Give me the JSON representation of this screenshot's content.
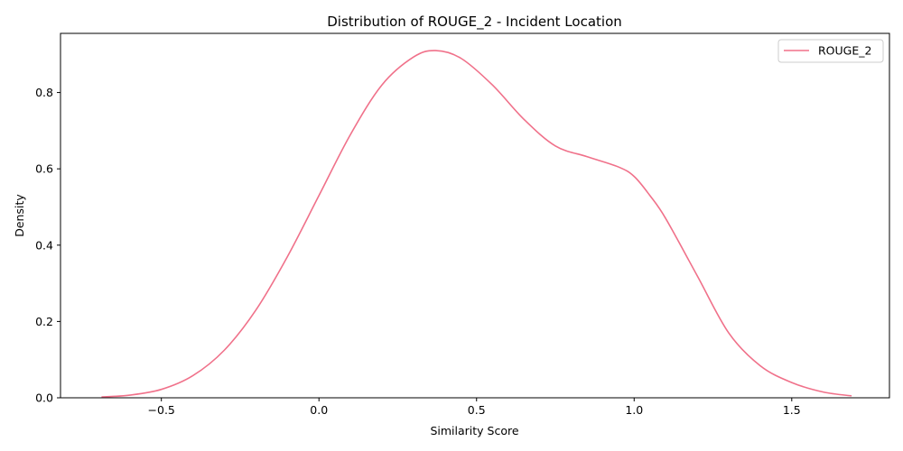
{
  "chart_data": {
    "type": "line",
    "title": "Distribution of ROUGE_2 - Incident Location",
    "xlabel": "Similarity Score",
    "ylabel": "Density",
    "xlim": [
      -0.82,
      1.81
    ],
    "ylim": [
      0,
      0.955
    ],
    "xticks": [
      -0.5,
      0.0,
      0.5,
      1.0,
      1.5
    ],
    "xtick_labels": [
      "−0.5",
      "0.0",
      "0.5",
      "1.0",
      "1.5"
    ],
    "yticks": [
      0.0,
      0.2,
      0.4,
      0.6,
      0.8
    ],
    "ytick_labels": [
      "0.0",
      "0.2",
      "0.4",
      "0.6",
      "0.8"
    ],
    "grid": false,
    "legend_position": "top-right",
    "series": [
      {
        "name": "ROUGE_2",
        "color": "#f0718a",
        "x": [
          -0.69,
          -0.6,
          -0.5,
          -0.4,
          -0.3,
          -0.2,
          -0.1,
          0.0,
          0.1,
          0.2,
          0.3,
          0.37,
          0.45,
          0.55,
          0.65,
          0.75,
          0.85,
          0.95,
          1.0,
          1.05,
          1.1,
          1.2,
          1.3,
          1.4,
          1.5,
          1.6,
          1.69
        ],
        "y": [
          0.002,
          0.007,
          0.022,
          0.058,
          0.125,
          0.23,
          0.37,
          0.53,
          0.69,
          0.82,
          0.893,
          0.91,
          0.89,
          0.82,
          0.73,
          0.66,
          0.632,
          0.605,
          0.58,
          0.53,
          0.47,
          0.32,
          0.17,
          0.084,
          0.04,
          0.015,
          0.005
        ]
      }
    ]
  }
}
